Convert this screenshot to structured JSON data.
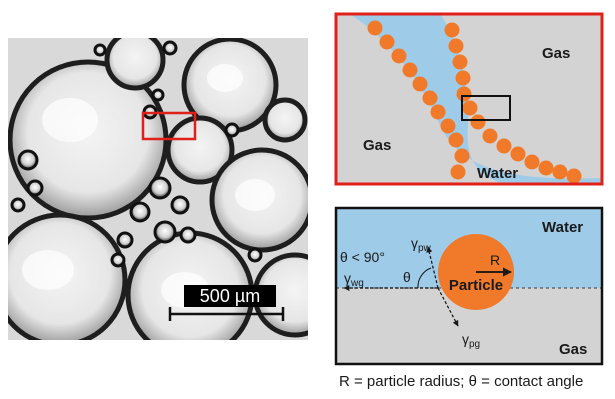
{
  "micrograph": {
    "scale_bar_label": "500 µm"
  },
  "zoom_panel": {
    "gas_left": "Gas",
    "gas_right": "Gas",
    "water": "Water",
    "border_color": "#e0201b",
    "water_color": "#9ecbe8",
    "gas_color": "#d3d3d3",
    "particle_color": "#f07a2a"
  },
  "contact_panel": {
    "water": "Water",
    "gas": "Gas",
    "particle": "Particle",
    "radius": "R",
    "theta": "θ",
    "theta_condition": "θ < 90°",
    "gamma_pw": "γ",
    "gamma_pw_sub": "pw",
    "gamma_wg": "γ",
    "gamma_wg_sub": "wg",
    "gamma_pg": "γ",
    "gamma_pg_sub": "pg"
  },
  "caption": "R = particle radius; θ = contact angle"
}
